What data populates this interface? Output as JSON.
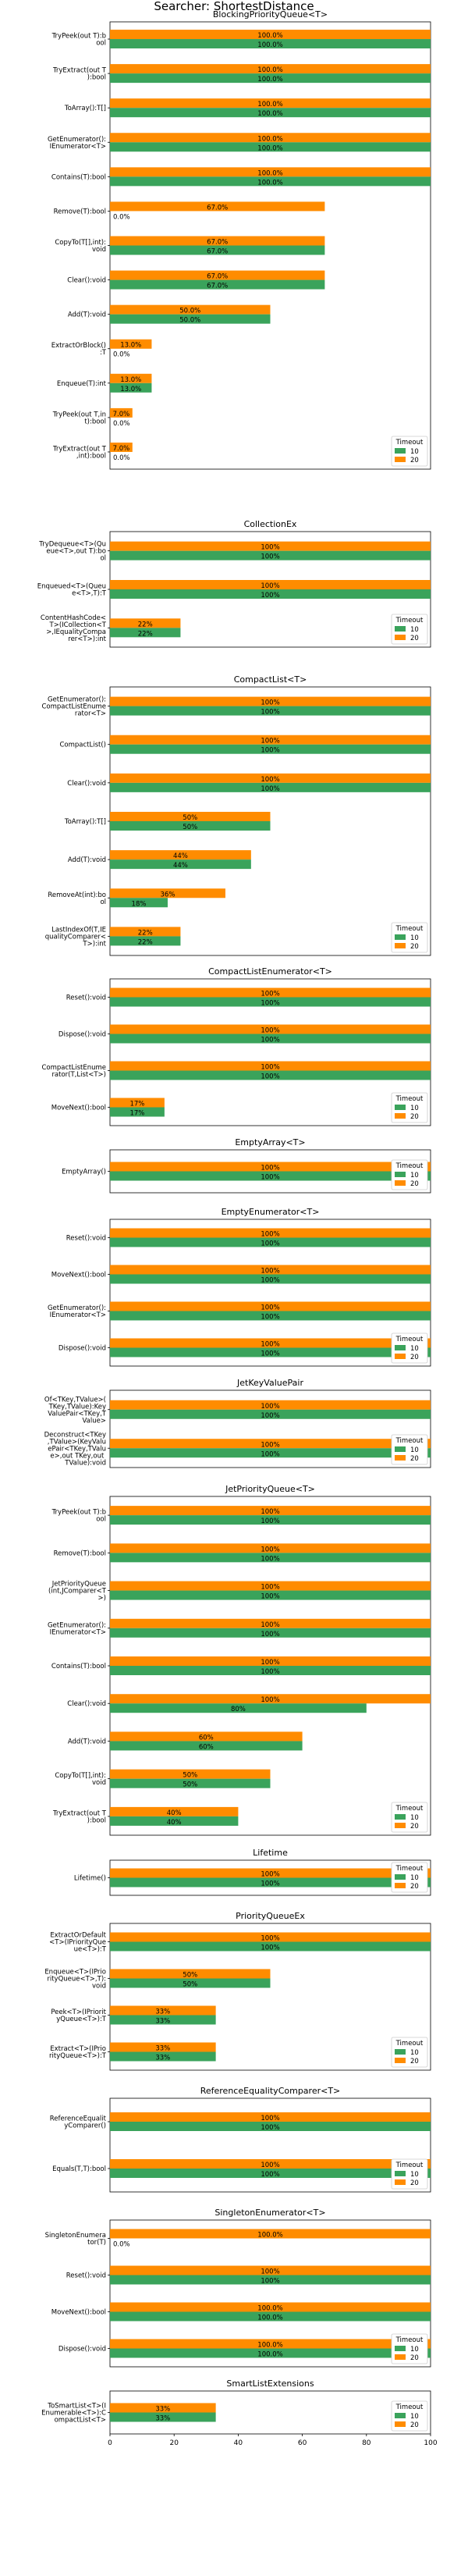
{
  "title": "Searcher: ShortestDistance",
  "colors": {
    "10": "#3aa35b",
    "20": "#ff8c00"
  },
  "legend": {
    "title": "Timeout",
    "labels": [
      "10",
      "20"
    ]
  },
  "x_ticks": [
    "0",
    "20",
    "40",
    "60",
    "80",
    "100"
  ],
  "chart_data": [
    {
      "type": "bar",
      "title": "BlockingPriorityQueue<T>",
      "xlim": [
        0,
        100
      ],
      "categories": [
        "TryPeek(out T):bool",
        "TryExtract(out T):bool",
        "ToArray():T[]",
        "GetEnumerator():IEnumerator<T>",
        "Contains(T):bool",
        "Remove(T):bool",
        "CopyTo(T[],int):void",
        "Clear():void",
        "Add(T):void",
        "ExtractOrBlock():T",
        "Enqueue(T):int",
        "TryPeek(out T,int):bool",
        "TryExtract(out T,int):bool"
      ],
      "series": [
        {
          "name": "10",
          "values": [
            100.0,
            100.0,
            100.0,
            100.0,
            100.0,
            0.0,
            67.0,
            67.0,
            50.0,
            0.0,
            13.0,
            0.0,
            0.0
          ],
          "labels": [
            "100.0%",
            "100.0%",
            "100.0%",
            "100.0%",
            "100.0%",
            "0.0%",
            "67.0%",
            "67.0%",
            "50.0%",
            "0.0%",
            "13.0%",
            "0.0%",
            "0.0%"
          ]
        },
        {
          "name": "20",
          "values": [
            100.0,
            100.0,
            100.0,
            100.0,
            100.0,
            67.0,
            67.0,
            67.0,
            50.0,
            13.0,
            13.0,
            7.0,
            7.0
          ],
          "labels": [
            "100.0%",
            "100.0%",
            "100.0%",
            "100.0%",
            "100.0%",
            "67.0%",
            "67.0%",
            "67.0%",
            "50.0%",
            "13.0%",
            "13.0%",
            "7.0%",
            "7.0%"
          ]
        }
      ]
    },
    {
      "type": "bar",
      "title": "CollectionEx",
      "xlim": [
        0,
        100
      ],
      "categories": [
        "TryDequeue<T>(Queue<T>,out T):bool",
        "Enqueued<T>(Queue<T>,T):T",
        "ContentHashCode<T>(ICollection<T>,IEqualityComparer<T>):int"
      ],
      "series": [
        {
          "name": "10",
          "values": [
            100,
            100,
            22
          ],
          "labels": [
            "100%",
            "100%",
            "22%"
          ]
        },
        {
          "name": "20",
          "values": [
            100,
            100,
            22
          ],
          "labels": [
            "100%",
            "100%",
            "22%"
          ]
        }
      ]
    },
    {
      "type": "bar",
      "title": "CompactList<T>",
      "xlim": [
        0,
        100
      ],
      "categories": [
        "GetEnumerator():CompactListEnumerator<T>",
        "CompactList()",
        "Clear():void",
        "ToArray():T[]",
        "Add(T):void",
        "RemoveAt(int):bool",
        "LastIndexOf(T,IEqualityComparer<T>):int"
      ],
      "series": [
        {
          "name": "10",
          "values": [
            100,
            100,
            100,
            50,
            44,
            18,
            22
          ],
          "labels": [
            "100%",
            "100%",
            "100%",
            "50%",
            "44%",
            "18%",
            "22%"
          ]
        },
        {
          "name": "20",
          "values": [
            100,
            100,
            100,
            50,
            44,
            36,
            22
          ],
          "labels": [
            "100%",
            "100%",
            "100%",
            "50%",
            "44%",
            "36%",
            "22%"
          ]
        }
      ]
    },
    {
      "type": "bar",
      "title": "CompactListEnumerator<T>",
      "xlim": [
        0,
        100
      ],
      "categories": [
        "Reset():void",
        "Dispose():void",
        "CompactListEnumerator(T,List<T>)",
        "MoveNext():bool"
      ],
      "series": [
        {
          "name": "10",
          "values": [
            100,
            100,
            100,
            17
          ],
          "labels": [
            "100%",
            "100%",
            "100%",
            "17%"
          ]
        },
        {
          "name": "20",
          "values": [
            100,
            100,
            100,
            17
          ],
          "labels": [
            "100%",
            "100%",
            "100%",
            "17%"
          ]
        }
      ]
    },
    {
      "type": "bar",
      "title": "EmptyArray<T>",
      "xlim": [
        0,
        100
      ],
      "categories": [
        "EmptyArray()"
      ],
      "series": [
        {
          "name": "10",
          "values": [
            100
          ],
          "labels": [
            "100%"
          ]
        },
        {
          "name": "20",
          "values": [
            100
          ],
          "labels": [
            "100%"
          ]
        }
      ]
    },
    {
      "type": "bar",
      "title": "EmptyEnumerator<T>",
      "xlim": [
        0,
        100
      ],
      "categories": [
        "Reset():void",
        "MoveNext():bool",
        "GetEnumerator():IEnumerator<T>",
        "Dispose():void"
      ],
      "series": [
        {
          "name": "10",
          "values": [
            100,
            100,
            100,
            100
          ],
          "labels": [
            "100%",
            "100%",
            "100%",
            "100%"
          ]
        },
        {
          "name": "20",
          "values": [
            100,
            100,
            100,
            100
          ],
          "labels": [
            "100%",
            "100%",
            "100%",
            "100%"
          ]
        }
      ]
    },
    {
      "type": "bar",
      "title": "JetKeyValuePair",
      "xlim": [
        0,
        100
      ],
      "categories": [
        "Of<TKey,TValue>(TKey,TValue):KeyValuePair<TKey,TValue>",
        "Deconstruct<TKey,TValue>(KeyValuePair<TKey,TValue>,out TKey,out TValue):void"
      ],
      "series": [
        {
          "name": "10",
          "values": [
            100,
            100
          ],
          "labels": [
            "100%",
            "100%"
          ]
        },
        {
          "name": "20",
          "values": [
            100,
            100
          ],
          "labels": [
            "100%",
            "100%"
          ]
        }
      ]
    },
    {
      "type": "bar",
      "title": "JetPriorityQueue<T>",
      "xlim": [
        0,
        100
      ],
      "categories": [
        "TryPeek(out T):bool",
        "Remove(T):bool",
        "JetPriorityQueue(int,JComparer<T>)",
        "GetEnumerator():IEnumerator<T>",
        "Contains(T):bool",
        "Clear():void",
        "Add(T):void",
        "CopyTo(T[],int):void",
        "TryExtract(out T):bool"
      ],
      "series": [
        {
          "name": "10",
          "values": [
            100,
            100,
            100,
            100,
            100,
            80,
            60,
            50,
            40
          ],
          "labels": [
            "100%",
            "100%",
            "100%",
            "100%",
            "100%",
            "80%",
            "60%",
            "50%",
            "40%"
          ]
        },
        {
          "name": "20",
          "values": [
            100,
            100,
            100,
            100,
            100,
            100,
            60,
            50,
            40
          ],
          "labels": [
            "100%",
            "100%",
            "100%",
            "100%",
            "100%",
            "100%",
            "60%",
            "50%",
            "40%"
          ]
        }
      ]
    },
    {
      "type": "bar",
      "title": "Lifetime",
      "xlim": [
        0,
        100
      ],
      "categories": [
        "Lifetime()"
      ],
      "series": [
        {
          "name": "10",
          "values": [
            100
          ],
          "labels": [
            "100%"
          ]
        },
        {
          "name": "20",
          "values": [
            100
          ],
          "labels": [
            "100%"
          ]
        }
      ]
    },
    {
      "type": "bar",
      "title": "PriorityQueueEx",
      "xlim": [
        0,
        100
      ],
      "categories": [
        "ExtractOrDefault<T>(IPriorityQueue<T>):T",
        "Enqueue<T>(IPriorityQueue<T>,T):void",
        "Peek<T>(IPriorityQueue<T>):T",
        "Extract<T>(IPriorityQueue<T>):T"
      ],
      "series": [
        {
          "name": "10",
          "values": [
            100,
            50,
            33,
            33
          ],
          "labels": [
            "100%",
            "50%",
            "33%",
            "33%"
          ]
        },
        {
          "name": "20",
          "values": [
            100,
            50,
            33,
            33
          ],
          "labels": [
            "100%",
            "50%",
            "33%",
            "33%"
          ]
        }
      ]
    },
    {
      "type": "bar",
      "title": "ReferenceEqualityComparer<T>",
      "xlim": [
        0,
        100
      ],
      "categories": [
        "ReferenceEqualityComparer()",
        "Equals(T,T):bool"
      ],
      "series": [
        {
          "name": "10",
          "values": [
            100,
            100
          ],
          "labels": [
            "100%",
            "100%"
          ]
        },
        {
          "name": "20",
          "values": [
            100,
            100
          ],
          "labels": [
            "100%",
            "100%"
          ]
        }
      ]
    },
    {
      "type": "bar",
      "title": "SingletonEnumerator<T>",
      "xlim": [
        0,
        100
      ],
      "categories": [
        "SingletonEnumerator(T)",
        "Reset():void",
        "MoveNext():bool",
        "Dispose():void"
      ],
      "series": [
        {
          "name": "10",
          "values": [
            0.0,
            100,
            100.0,
            100.0
          ],
          "labels": [
            "0.0%",
            "100%",
            "100.0%",
            "100.0%"
          ]
        },
        {
          "name": "20",
          "values": [
            100.0,
            100,
            100.0,
            100.0
          ],
          "labels": [
            "100.0%",
            "100%",
            "100.0%",
            "100.0%"
          ]
        }
      ]
    },
    {
      "type": "bar",
      "title": "SmartListExtensions",
      "xlim": [
        0,
        100
      ],
      "categories": [
        "ToSmartList<T>(IEnumerable<T>):CompactList<T>"
      ],
      "series": [
        {
          "name": "10",
          "values": [
            33
          ],
          "labels": [
            "33%"
          ]
        },
        {
          "name": "20",
          "values": [
            33
          ],
          "labels": [
            "33%"
          ]
        }
      ]
    }
  ]
}
